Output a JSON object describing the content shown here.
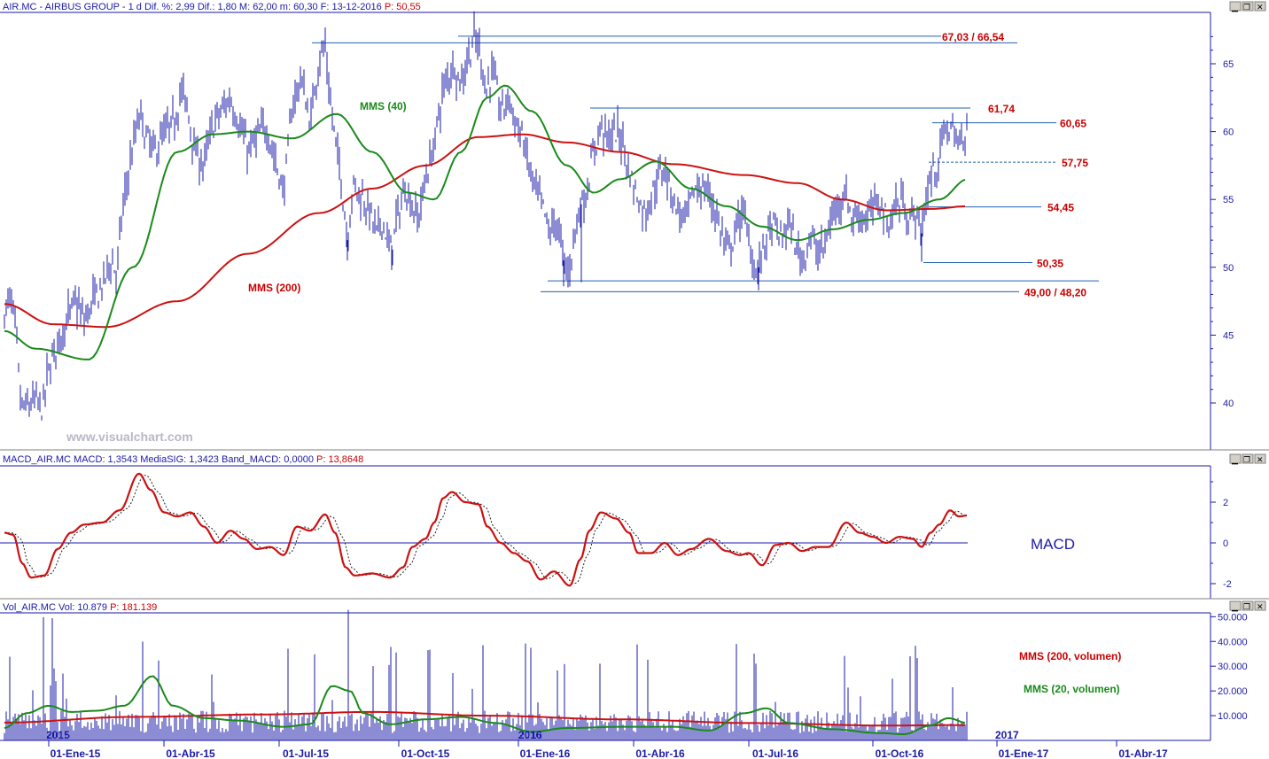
{
  "price_panel": {
    "header": {
      "label": "AIR.MC - AIRBUS GROUP - 1 d Dif. %: 2,99 Dif.: 1,80 M: 62,00 m: 60,30 F: 13-12-2016",
      "value": "P: 50,55"
    },
    "watermark": "www.visualchart.com",
    "annotations": {
      "mms40": "MMS (40)",
      "mms200": "MMS (200)"
    },
    "levels": [
      {
        "label": "67,03 / 66,54",
        "value": 66.8
      },
      {
        "label": "61,74",
        "value": 61.74
      },
      {
        "label": "60,65",
        "value": 60.65
      },
      {
        "label": "57,75",
        "value": 57.75
      },
      {
        "label": "54,45",
        "value": 54.45
      },
      {
        "label": "50,35",
        "value": 50.35
      },
      {
        "label": "49,00 / 48,20",
        "value": 48.6
      }
    ],
    "y_ticks": [
      "65",
      "60",
      "55",
      "50",
      "45",
      "40"
    ]
  },
  "macd_panel": {
    "header": {
      "label": "MACD_AIR.MC MACD: 1,3543 MediaSIG: 1,3423 Band_MACD: 0,0000",
      "value": "P: 13,8648"
    },
    "title": "MACD",
    "y_ticks": [
      "2",
      "0",
      "-2"
    ]
  },
  "volume_panel": {
    "header": {
      "label": "Vol_AIR.MC Vol: 10.879",
      "value": "P: 181.139"
    },
    "annotations": {
      "mms200": "MMS (200, volumen)",
      "mms20": "MMS (20, volumen)"
    },
    "y_ticks": [
      "50.000",
      "40.000",
      "30.000",
      "20.000",
      "10.000"
    ],
    "year_labels": [
      "2015",
      "2016",
      "2017"
    ]
  },
  "window_controls": {
    "minimize": "▁",
    "restore": "❐",
    "close": "✕"
  },
  "x_axis": {
    "ticks": [
      "01-Ene-15",
      "01-Abr-15",
      "01-Jul-15",
      "01-Oct-15",
      "01-Ene-16",
      "01-Abr-16",
      "01-Jul-16",
      "01-Oct-16",
      "01-Ene-17",
      "01-Abr-17"
    ]
  },
  "colors": {
    "price": "#1a1aa8",
    "mms40": "#1a8a1a",
    "mms200": "#cc1111",
    "levels": "#2060b0"
  },
  "chart_data": {
    "type": "line",
    "title": "AIR.MC - AIRBUS GROUP - 1 d",
    "ylim": [
      38,
      68
    ],
    "series": [
      {
        "name": "AIR.MC",
        "x": [
          "01-Ene-15",
          "01-Abr-15",
          "01-Jul-15",
          "01-Oct-15",
          "01-Ene-16",
          "01-Abr-16",
          "01-Jul-16",
          "01-Oct-16"
        ],
        "values": [
          45.5,
          59.5,
          63.0,
          54.0,
          57.0,
          57.0,
          51.5,
          55.0
        ]
      },
      {
        "name": "MMS (40)",
        "x": [
          "01-Ene-15",
          "01-Abr-15",
          "01-Jul-15",
          "01-Oct-15",
          "01-Ene-16",
          "01-Abr-16",
          "01-Jul-16",
          "01-Oct-16"
        ],
        "values": [
          44.8,
          59.2,
          61.2,
          55.5,
          61.5,
          56.5,
          52.5,
          54.0
        ]
      },
      {
        "name": "MMS (200)",
        "x": [
          "01-Ene-15",
          "01-Abr-15",
          "01-Jul-15",
          "01-Oct-15",
          "01-Ene-16",
          "01-Abr-16",
          "01-Jul-16",
          "01-Oct-16"
        ],
        "values": [
          45.6,
          48.5,
          53.5,
          57.0,
          59.5,
          57.4,
          55.0,
          54.0
        ]
      }
    ]
  }
}
